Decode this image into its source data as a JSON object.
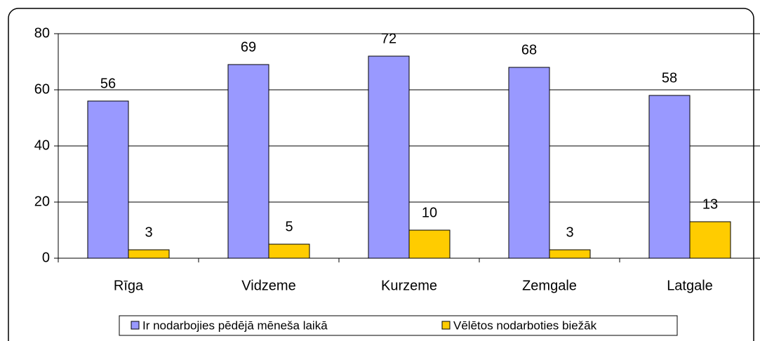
{
  "chart_data": {
    "type": "bar",
    "categories": [
      "Rīga",
      "Vidzeme",
      "Kurzeme",
      "Zemgale",
      "Latgale"
    ],
    "series": [
      {
        "name": "Ir nodarbojies pēdējā mēneša laikā",
        "color": "#9999ff",
        "values": [
          56,
          69,
          72,
          68,
          58
        ]
      },
      {
        "name": "Vēlētos nodarboties biežāk",
        "color": "#ffcc00",
        "values": [
          3,
          5,
          10,
          3,
          13
        ]
      }
    ],
    "ylim": [
      0,
      80
    ],
    "yticks": [
      0,
      20,
      40,
      60,
      80
    ],
    "grid": true,
    "legend": "bottom"
  }
}
